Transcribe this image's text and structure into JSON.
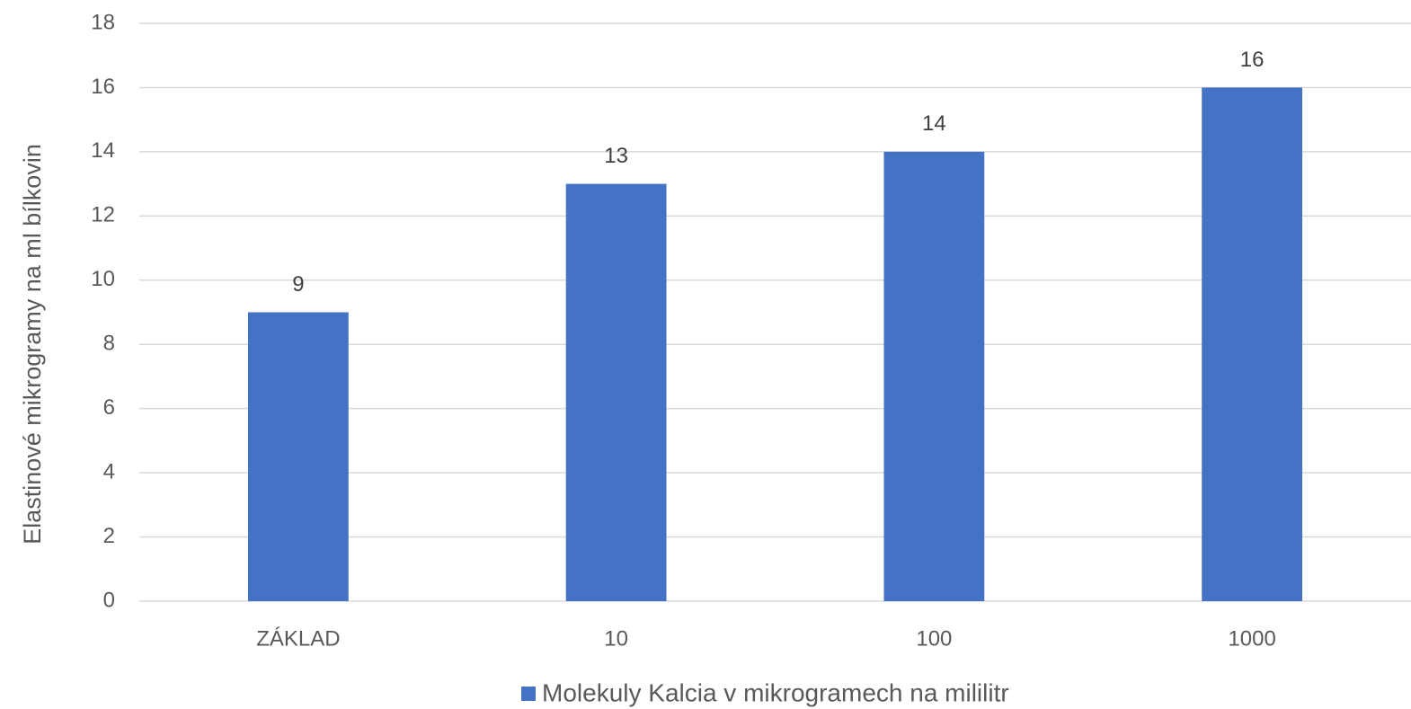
{
  "chart_data": {
    "type": "bar",
    "y_label": "Elastinové mikrogramy na ml bílkovin",
    "categories": [
      "ZÁKLAD",
      "10",
      "100",
      "1000"
    ],
    "series": [
      {
        "name": "Molekuly Kalcia v mikrogramech na mililitr",
        "color": "#4472c4",
        "values": [
          9,
          13,
          14,
          16
        ]
      }
    ],
    "ylim": [
      0,
      18
    ],
    "yticks": [
      0,
      2,
      4,
      6,
      8,
      10,
      12,
      14,
      16,
      18
    ],
    "grid": true,
    "legend": "bottom",
    "data_labels": true
  }
}
